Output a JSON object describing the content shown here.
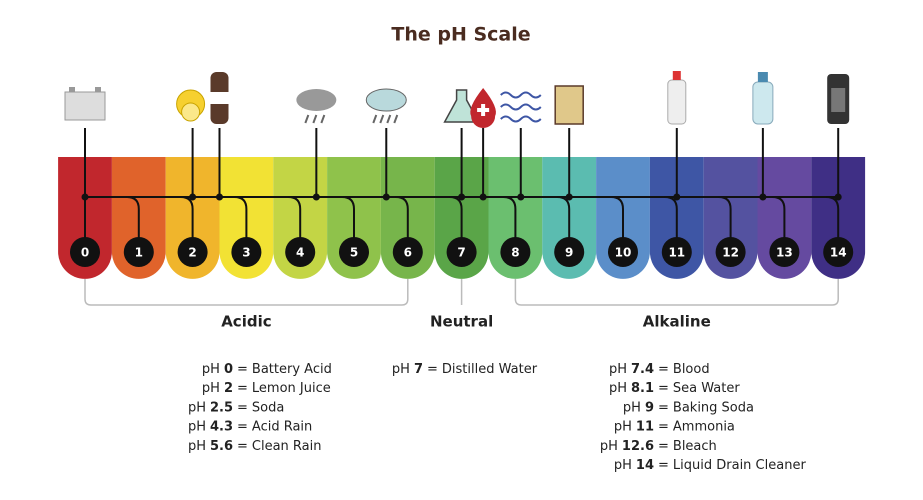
{
  "title": "The pH Scale",
  "scale": [
    {
      "value": 0,
      "color": "#c1272d"
    },
    {
      "value": 1,
      "color": "#e0632b"
    },
    {
      "value": 2,
      "color": "#f0b52c"
    },
    {
      "value": 3,
      "color": "#f2e234"
    },
    {
      "value": 4,
      "color": "#c3d545"
    },
    {
      "value": 5,
      "color": "#8fc24b"
    },
    {
      "value": 6,
      "color": "#77b54b"
    },
    {
      "value": 7,
      "color": "#5aa548"
    },
    {
      "value": 8,
      "color": "#6bbf6f"
    },
    {
      "value": 9,
      "color": "#5bbcb0"
    },
    {
      "value": 10,
      "color": "#5b8ec9"
    },
    {
      "value": 11,
      "color": "#3e56a5"
    },
    {
      "value": 12,
      "color": "#5452a0"
    },
    {
      "value": 13,
      "color": "#654aa0"
    },
    {
      "value": 14,
      "color": "#3f2f85"
    }
  ],
  "label_prefix": "pH",
  "separator": "=",
  "groups": [
    {
      "name": "Acidic",
      "color": "#5a6a80",
      "examples": [
        {
          "ph": 0,
          "substance": "Battery Acid"
        },
        {
          "ph": 2,
          "substance": "Lemon Juice"
        },
        {
          "ph": 2.5,
          "substance": "Soda"
        },
        {
          "ph": 4.3,
          "substance": "Acid Rain"
        },
        {
          "ph": 5.6,
          "substance": "Clean Rain"
        }
      ]
    },
    {
      "name": "Neutral",
      "color": "#6ab04c",
      "examples": [
        {
          "ph": 7,
          "substance": "Distilled Water"
        }
      ]
    },
    {
      "name": "Alkaline",
      "color": "#5a6a80",
      "examples": [
        {
          "ph": 7.4,
          "substance": "Blood"
        },
        {
          "ph": 8.1,
          "substance": "Sea Water"
        },
        {
          "ph": 9,
          "substance": "Baking Soda"
        },
        {
          "ph": 11,
          "substance": "Ammonia"
        },
        {
          "ph": 12.6,
          "substance": "Bleach"
        },
        {
          "ph": 14,
          "substance": "Liquid Drain Cleaner"
        }
      ]
    }
  ]
}
